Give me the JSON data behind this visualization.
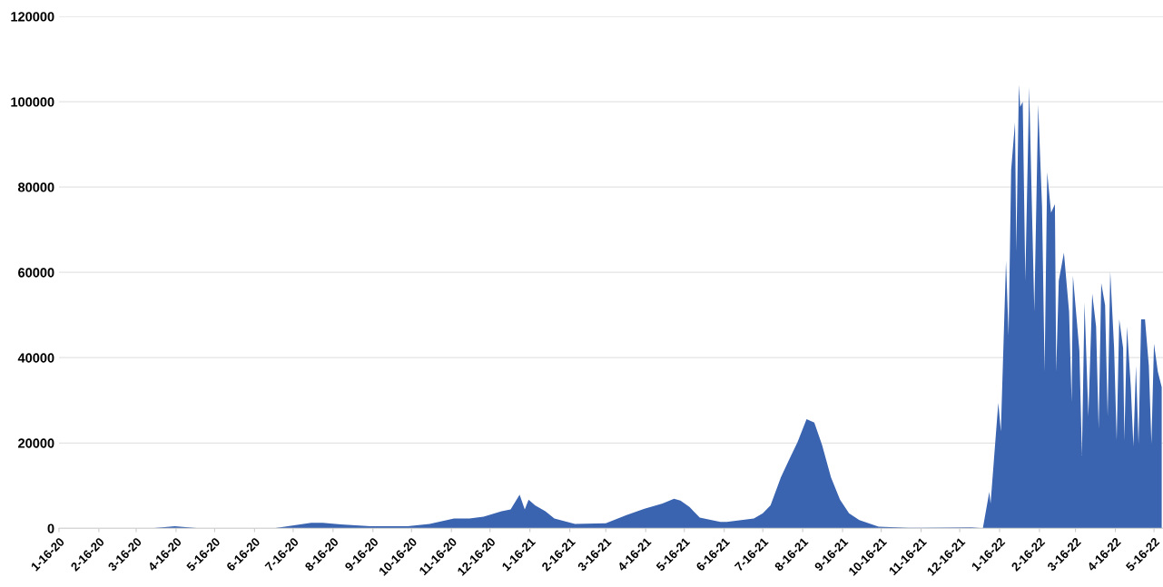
{
  "chart_data": {
    "type": "area",
    "x": [
      "2020-01-16",
      "2020-03-28",
      "2020-04-15",
      "2020-05-04",
      "2020-06-04",
      "2020-07-01",
      "2020-07-30",
      "2020-08-08",
      "2020-08-22",
      "2020-09-14",
      "2020-10-13",
      "2020-10-30",
      "2020-11-18",
      "2020-11-30",
      "2020-12-11",
      "2020-12-25",
      "2021-01-01",
      "2021-01-08",
      "2021-01-12",
      "2021-01-15",
      "2021-01-20",
      "2021-01-28",
      "2021-02-04",
      "2021-02-20",
      "2021-03-16",
      "2021-04-01",
      "2021-04-15",
      "2021-04-29",
      "2021-05-08",
      "2021-05-13",
      "2021-05-20",
      "2021-05-28",
      "2021-06-13",
      "2021-06-18",
      "2021-07-09",
      "2021-07-16",
      "2021-07-22",
      "2021-07-30",
      "2021-08-05",
      "2021-08-12",
      "2021-08-19",
      "2021-08-25",
      "2021-08-31",
      "2021-09-07",
      "2021-09-14",
      "2021-09-21",
      "2021-09-29",
      "2021-10-14",
      "2021-11-06",
      "2021-12-25",
      "2022-01-03",
      "2022-01-08",
      "2022-01-09",
      "2022-01-15",
      "2022-01-17",
      "2022-01-21",
      "2022-01-23",
      "2022-01-25",
      "2022-01-28",
      "2022-01-29",
      "2022-01-31",
      "2022-02-01",
      "2022-02-03",
      "2022-02-05",
      "2022-02-08",
      "2022-02-12",
      "2022-02-15",
      "2022-02-18",
      "2022-02-20",
      "2022-02-22",
      "2022-02-25",
      "2022-02-28",
      "2022-03-01",
      "2022-03-03",
      "2022-03-07",
      "2022-03-11",
      "2022-03-13",
      "2022-03-14",
      "2022-03-19",
      "2022-03-21",
      "2022-03-23",
      "2022-03-26",
      "2022-03-29",
      "2022-04-01",
      "2022-04-03",
      "2022-04-05",
      "2022-04-08",
      "2022-04-10",
      "2022-04-12",
      "2022-04-15",
      "2022-04-17",
      "2022-04-19",
      "2022-04-22",
      "2022-04-23",
      "2022-04-25",
      "2022-04-28",
      "2022-04-30",
      "2022-05-02",
      "2022-05-04",
      "2022-05-06",
      "2022-05-09",
      "2022-05-12",
      "2022-05-14",
      "2022-05-16",
      "2022-05-19",
      "2022-05-22"
    ],
    "series": [
      {
        "color": "#3a64b0",
        "values": [
          0,
          0,
          500,
          0,
          0,
          0,
          1300,
          1300,
          900,
          500,
          500,
          1000,
          2300,
          2300,
          2700,
          4000,
          4400,
          7900,
          4400,
          6700,
          5400,
          4000,
          2300,
          1000,
          1200,
          3100,
          4600,
          5800,
          6900,
          6500,
          5000,
          2500,
          1500,
          1500,
          2300,
          3500,
          5400,
          11900,
          15800,
          20200,
          25600,
          24800,
          19600,
          11900,
          6700,
          3500,
          1900,
          400,
          100,
          200,
          0,
          8500,
          5800,
          29400,
          22700,
          62700,
          45200,
          84000,
          95200,
          64800,
          104000,
          98800,
          100000,
          58000,
          103500,
          50800,
          99400,
          75400,
          36700,
          83500,
          74000,
          76000,
          36700,
          58000,
          64600,
          50800,
          29600,
          59200,
          41700,
          17100,
          52900,
          26200,
          55000,
          47300,
          23300,
          57500,
          52300,
          26200,
          60200,
          42300,
          20600,
          49000,
          42300,
          20600,
          47300,
          33100,
          19200,
          38100,
          19800,
          49000,
          49000,
          38100,
          19800,
          43300,
          36700,
          33100
        ]
      }
    ],
    "xlim": [
      "2020-01-16",
      "2022-05-23"
    ],
    "xticks": [
      {
        "value": "2020-01-16",
        "label": "1-16-20"
      },
      {
        "value": "2020-02-16",
        "label": "2-16-20"
      },
      {
        "value": "2020-03-16",
        "label": "3-16-20"
      },
      {
        "value": "2020-04-16",
        "label": "4-16-20"
      },
      {
        "value": "2020-05-16",
        "label": "5-16-20"
      },
      {
        "value": "2020-06-16",
        "label": "6-16-20"
      },
      {
        "value": "2020-07-16",
        "label": "7-16-20"
      },
      {
        "value": "2020-08-16",
        "label": "8-16-20"
      },
      {
        "value": "2020-09-16",
        "label": "9-16-20"
      },
      {
        "value": "2020-10-16",
        "label": "10-16-20"
      },
      {
        "value": "2020-11-16",
        "label": "11-16-20"
      },
      {
        "value": "2020-12-16",
        "label": "12-16-20"
      },
      {
        "value": "2021-01-16",
        "label": "1-16-21"
      },
      {
        "value": "2021-02-16",
        "label": "2-16-21"
      },
      {
        "value": "2021-03-16",
        "label": "3-16-21"
      },
      {
        "value": "2021-04-16",
        "label": "4-16-21"
      },
      {
        "value": "2021-05-16",
        "label": "5-16-21"
      },
      {
        "value": "2021-06-16",
        "label": "6-16-21"
      },
      {
        "value": "2021-07-16",
        "label": "7-16-21"
      },
      {
        "value": "2021-08-16",
        "label": "8-16-21"
      },
      {
        "value": "2021-09-16",
        "label": "9-16-21"
      },
      {
        "value": "2021-10-16",
        "label": "10-16-21"
      },
      {
        "value": "2021-11-16",
        "label": "11-16-21"
      },
      {
        "value": "2021-12-16",
        "label": "12-16-21"
      },
      {
        "value": "2022-01-16",
        "label": "1-16-22"
      },
      {
        "value": "2022-02-16",
        "label": "2-16-22"
      },
      {
        "value": "2022-03-16",
        "label": "3-16-22"
      },
      {
        "value": "2022-04-16",
        "label": "4-16-22"
      },
      {
        "value": "2022-05-16",
        "label": "5-16-22"
      }
    ],
    "ylim": [
      0,
      120000
    ],
    "yticks": [
      0,
      20000,
      40000,
      60000,
      80000,
      100000,
      120000
    ],
    "grid": "y"
  }
}
